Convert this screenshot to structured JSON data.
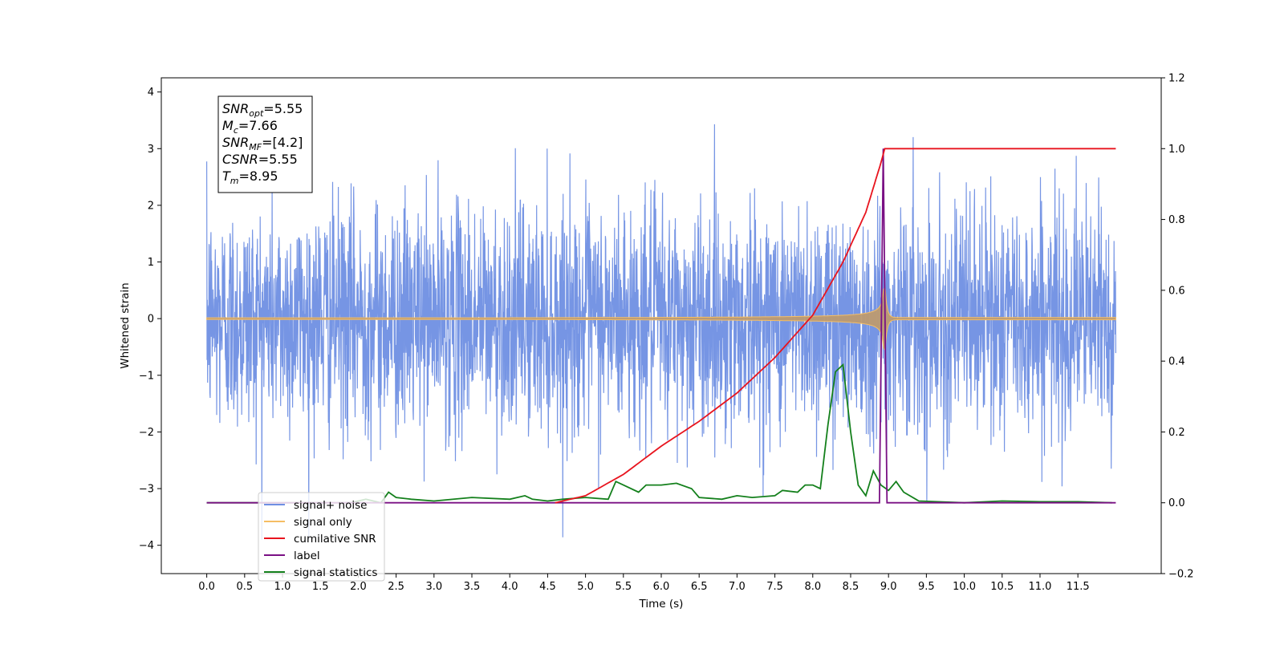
{
  "chart_data": {
    "type": "line",
    "xlabel": "Time (s)",
    "ylabel": "Whitened strain",
    "xlim": [
      -0.6,
      12.6
    ],
    "ylim": [
      -4.5,
      4.25
    ],
    "y2lim": [
      -0.2,
      1.2
    ],
    "x_ticks": [
      "0.0",
      "0.5",
      "1.0",
      "1.5",
      "2.0",
      "2.5",
      "3.0",
      "3.5",
      "4.0",
      "4.5",
      "5.0",
      "5.5",
      "6.0",
      "6.5",
      "7.0",
      "7.5",
      "8.0",
      "8.5",
      "9.0",
      "9.5",
      "10.0",
      "10.5",
      "11.0",
      "11.5"
    ],
    "y_ticks": [
      "4",
      "3",
      "2",
      "1",
      "0",
      "−1",
      "−2",
      "−3",
      "−4"
    ],
    "y2_ticks": [
      "1.2",
      "1.0",
      "0.8",
      "0.6",
      "0.4",
      "0.2",
      "0.0",
      "−0.2"
    ],
    "grid": false,
    "legend_location": "lower-left",
    "annotation": {
      "lines": [
        {
          "sym": "SNR",
          "sub": "opt",
          "value": "=5.55"
        },
        {
          "sym": "M",
          "sub": "c",
          "value": "=7.66"
        },
        {
          "sym": "SNR",
          "sub": "MF",
          "value": "=[4.2]"
        },
        {
          "sym": "CSNR",
          "sub": "",
          "value": "=5.55"
        },
        {
          "sym": "T",
          "sub": "m",
          "value": "=8.95"
        }
      ]
    },
    "series": [
      {
        "name": "signal+ noise",
        "color": "#6f8fe3",
        "axis": "left",
        "t_range": [
          0,
          12.0
        ],
        "noise_std": 1.0,
        "peak_abs": 3.9
      },
      {
        "name": "signal only",
        "color": "#f5be64",
        "axis": "left",
        "t_range": [
          0,
          12.0
        ],
        "merger_time": 8.95,
        "peak_amplitude": 0.65
      },
      {
        "name": "cumilative SNR",
        "color": "#e8141e",
        "axis": "right",
        "x": [
          4.6,
          5.0,
          5.5,
          6.0,
          6.5,
          7.0,
          7.5,
          8.0,
          8.4,
          8.7,
          8.9,
          8.95,
          12.0
        ],
        "y": [
          0.0,
          0.02,
          0.08,
          0.16,
          0.23,
          0.31,
          0.41,
          0.53,
          0.68,
          0.82,
          0.96,
          1.0,
          1.0
        ]
      },
      {
        "name": "label",
        "color": "#7a1084",
        "axis": "right",
        "x": [
          0.0,
          8.88,
          8.93,
          8.98,
          12.0
        ],
        "y": [
          0.0,
          0.0,
          1.0,
          0.0,
          0.0
        ]
      },
      {
        "name": "signal statistics",
        "color": "#14801c",
        "axis": "right",
        "x": [
          0.0,
          1.9,
          2.1,
          2.3,
          2.4,
          2.5,
          2.7,
          3.0,
          3.5,
          4.0,
          4.2,
          4.3,
          4.5,
          4.7,
          5.0,
          5.3,
          5.4,
          5.5,
          5.7,
          5.8,
          6.0,
          6.2,
          6.4,
          6.5,
          6.8,
          7.0,
          7.2,
          7.5,
          7.6,
          7.8,
          7.9,
          8.0,
          8.1,
          8.2,
          8.3,
          8.4,
          8.5,
          8.6,
          8.7,
          8.8,
          8.9,
          9.0,
          9.1,
          9.2,
          9.4,
          10.0,
          10.5,
          11.0,
          11.5,
          11.95
        ],
        "y": [
          0.0,
          0.0,
          0.01,
          0.0,
          0.03,
          0.015,
          0.01,
          0.005,
          0.015,
          0.01,
          0.02,
          0.01,
          0.005,
          0.01,
          0.015,
          0.01,
          0.06,
          0.05,
          0.03,
          0.05,
          0.05,
          0.055,
          0.04,
          0.015,
          0.01,
          0.02,
          0.015,
          0.02,
          0.035,
          0.03,
          0.05,
          0.05,
          0.04,
          0.22,
          0.37,
          0.39,
          0.2,
          0.05,
          0.02,
          0.09,
          0.05,
          0.035,
          0.06,
          0.03,
          0.005,
          0.0,
          0.005,
          0.003,
          0.003,
          0.0
        ]
      }
    ]
  }
}
